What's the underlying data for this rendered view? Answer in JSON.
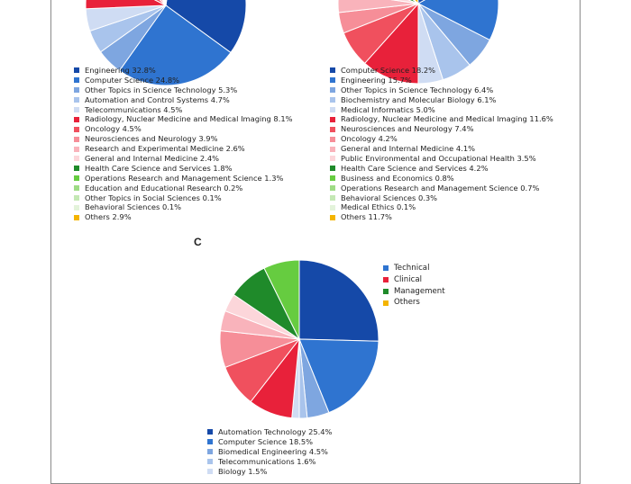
{
  "panel_c_label": "C",
  "colors": {
    "frame": "#8a8a8a",
    "technical": [
      "#1549a8",
      "#2f74d0",
      "#7ea6e0",
      "#a9c4ec",
      "#cfdcf3"
    ],
    "clinical": [
      "#e8213a",
      "#f0505e",
      "#f68e98",
      "#f9b3bb",
      "#fcd6da"
    ],
    "management": [
      "#1f8a2a",
      "#66cc40",
      "#9edb85",
      "#c4e8b4",
      "#e3f3da"
    ],
    "others": "#f4b400"
  },
  "chart_data": [
    {
      "type": "pie",
      "panel": "A",
      "start_angle_deg": 8,
      "slices": [
        {
          "label": "Engineering 32.8%",
          "value": 32.8,
          "color": "#1549a8"
        },
        {
          "label": "Computer Science 24.8%",
          "value": 24.8,
          "color": "#2f74d0"
        },
        {
          "label": "Other Topics in Science Technology 5.3%",
          "value": 5.3,
          "color": "#7ea6e0"
        },
        {
          "label": "Automation and Control Systems 4.7%",
          "value": 4.7,
          "color": "#a9c4ec"
        },
        {
          "label": "Telecommunications 4.5%",
          "value": 4.5,
          "color": "#cfdcf3"
        },
        {
          "label": "Radiology, Nuclear Medicine and Medical Imaging 8.1%",
          "value": 8.1,
          "color": "#e8213a"
        },
        {
          "label": "Oncology 4.5%",
          "value": 4.5,
          "color": "#f0505e"
        },
        {
          "label": "Neurosciences and Neurology 3.9%",
          "value": 3.9,
          "color": "#f68e98"
        },
        {
          "label": "Research and Experimental Medicine 2.6%",
          "value": 2.6,
          "color": "#f9b3bb"
        },
        {
          "label": "General and Internal Medicine 2.4%",
          "value": 2.4,
          "color": "#fcd6da"
        },
        {
          "label": "Health Care Science and Services 1.8%",
          "value": 1.8,
          "color": "#1f8a2a"
        },
        {
          "label": "Operations Research and Management Science 1.3%",
          "value": 1.3,
          "color": "#66cc40"
        },
        {
          "label": "Education and Educational Research 0.2%",
          "value": 0.2,
          "color": "#9edb85"
        },
        {
          "label": "Other Topics in Social Sciences 0.1%",
          "value": 0.1,
          "color": "#c4e8b4"
        },
        {
          "label": "Behavioral Sciences 0.1%",
          "value": 0.1,
          "color": "#e3f3da"
        },
        {
          "label": "Others 2.9%",
          "value": 2.9,
          "color": "#f4b400"
        }
      ]
    },
    {
      "type": "pie",
      "panel": "B",
      "start_angle_deg": -5,
      "slices": [
        {
          "label": "Computer Science 18.2%",
          "value": 18.2,
          "color": "#1549a8"
        },
        {
          "label": "Engineering 15.7%",
          "value": 15.7,
          "color": "#2f74d0"
        },
        {
          "label": "Other Topics in Science Technology 6.4%",
          "value": 6.4,
          "color": "#7ea6e0"
        },
        {
          "label": "Biochemistry and Molecular Biology 6.1%",
          "value": 6.1,
          "color": "#a9c4ec"
        },
        {
          "label": "Medical Informatics 5.0%",
          "value": 5.0,
          "color": "#cfdcf3"
        },
        {
          "label": "Radiology, Nuclear Medicine and Medical Imaging 11.6%",
          "value": 11.6,
          "color": "#e8213a"
        },
        {
          "label": "Neurosciences and Neurology 7.4%",
          "value": 7.4,
          "color": "#f0505e"
        },
        {
          "label": "Oncology 4.2%",
          "value": 4.2,
          "color": "#f68e98"
        },
        {
          "label": "General and Internal Medicine 4.1%",
          "value": 4.1,
          "color": "#f9b3bb"
        },
        {
          "label": "Public Environmental and Occupational Health 3.5%",
          "value": 3.5,
          "color": "#fcd6da"
        },
        {
          "label": "Health Care Science and Services 4.2%",
          "value": 4.2,
          "color": "#1f8a2a"
        },
        {
          "label": "Business and Economics 0.8%",
          "value": 0.8,
          "color": "#66cc40"
        },
        {
          "label": "Operations Research and Management Science 0.7%",
          "value": 0.7,
          "color": "#9edb85"
        },
        {
          "label": "Behavioral Sciences 0.3%",
          "value": 0.3,
          "color": "#c4e8b4"
        },
        {
          "label": "Medical Ethics 0.1%",
          "value": 0.1,
          "color": "#e3f3da"
        },
        {
          "label": "Others 11.7%",
          "value": 11.7,
          "color": "#f4b400"
        }
      ]
    },
    {
      "type": "pie",
      "panel": "C",
      "start_angle_deg": 0,
      "group_legend": [
        {
          "label": "Technical",
          "color": "#2f74d0"
        },
        {
          "label": "Clinical",
          "color": "#e8213a"
        },
        {
          "label": "Management",
          "color": "#1f8a2a"
        },
        {
          "label": "Others",
          "color": "#f4b400"
        }
      ],
      "slices": [
        {
          "label": "Automation Technology 25.4%",
          "value": 25.4,
          "color": "#1549a8"
        },
        {
          "label": "Computer Science 18.5%",
          "value": 18.5,
          "color": "#2f74d0"
        },
        {
          "label": "Biomedical Engineering 4.5%",
          "value": 4.5,
          "color": "#7ea6e0"
        },
        {
          "label": "Telecommunications 1.6%",
          "value": 1.6,
          "color": "#a9c4ec"
        },
        {
          "label": "Biology 1.5%",
          "value": 1.5,
          "color": "#cfdcf3"
        },
        {
          "value": 9.0,
          "color": "#e8213a"
        },
        {
          "value": 8.7,
          "color": "#f0505e"
        },
        {
          "value": 7.5,
          "color": "#f68e98"
        },
        {
          "value": 4.1,
          "color": "#f9b3bb"
        },
        {
          "value": 3.7,
          "color": "#fcd6da"
        },
        {
          "value": 8.2,
          "color": "#1f8a2a"
        },
        {
          "value": 7.3,
          "color": "#66cc40"
        }
      ]
    }
  ]
}
